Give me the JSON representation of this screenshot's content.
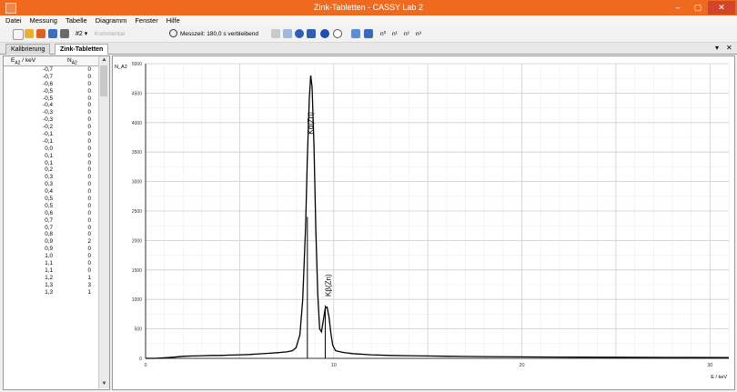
{
  "window": {
    "title": "Zink-Tabletten - CASSY Lab 2",
    "minimize": "–",
    "maximize": "▢",
    "close": "✕"
  },
  "menu": [
    "Datei",
    "Messung",
    "Tabelle",
    "Diagramm",
    "Fenster",
    "Hilfe"
  ],
  "toolbar": {
    "channel": "#2 ▾",
    "channel_hint": "Kommentar",
    "measure_time": "Messzeit: 180,0 s verbleibend",
    "exponents": [
      "n⁰",
      "n¹",
      "n²",
      "n³"
    ]
  },
  "tabs": {
    "calibration": "Kalibrierung",
    "active": "Zink-Tabletten",
    "pin": "▾",
    "close": "✕"
  },
  "table": {
    "headers": [
      "E<sub>A2</sub> / keV",
      "N<sub>A2</sub>"
    ],
    "rows": [
      [
        "-0,7",
        "0"
      ],
      [
        "-0,7",
        "0"
      ],
      [
        "-0,6",
        "0"
      ],
      [
        "-0,5",
        "0"
      ],
      [
        "-0,5",
        "0"
      ],
      [
        "-0,4",
        "0"
      ],
      [
        "-0,3",
        "0"
      ],
      [
        "-0,3",
        "0"
      ],
      [
        "-0,2",
        "0"
      ],
      [
        "-0,1",
        "0"
      ],
      [
        "-0,1",
        "0"
      ],
      [
        "0,0",
        "0"
      ],
      [
        "0,1",
        "0"
      ],
      [
        "0,1",
        "0"
      ],
      [
        "0,2",
        "0"
      ],
      [
        "0,3",
        "0"
      ],
      [
        "0,3",
        "0"
      ],
      [
        "0,4",
        "0"
      ],
      [
        "0,5",
        "0"
      ],
      [
        "0,5",
        "0"
      ],
      [
        "0,6",
        "0"
      ],
      [
        "0,7",
        "0"
      ],
      [
        "0,7",
        "0"
      ],
      [
        "0,8",
        "0"
      ],
      [
        "0,9",
        "2"
      ],
      [
        "0,9",
        "0"
      ],
      [
        "1,0",
        "0"
      ],
      [
        "1,1",
        "0"
      ],
      [
        "1,1",
        "0"
      ],
      [
        "1,2",
        "1"
      ],
      [
        "1,3",
        "3"
      ],
      [
        "1,3",
        "1"
      ]
    ]
  },
  "chart_data": {
    "type": "line",
    "ylabel": "N_A2",
    "xlabel": "E / keV",
    "xlim": [
      0,
      31
    ],
    "ylim": [
      0,
      5000
    ],
    "xticks": [
      0,
      10,
      20,
      30
    ],
    "yticks": [
      0,
      500,
      1000,
      1500,
      2000,
      2500,
      3000,
      3500,
      4000,
      4500,
      5000
    ],
    "grid": true,
    "annotations": [
      {
        "text": "Kα(Zn)",
        "x": 8.9,
        "y": 3800
      },
      {
        "text": "Kβ(Zn)",
        "x": 9.85,
        "y": 1050
      }
    ],
    "marker_lines": [
      {
        "x": 8.6,
        "y": 2400
      },
      {
        "x": 9.55,
        "y": 900
      }
    ],
    "series": [
      {
        "values": [
          [
            0,
            0
          ],
          [
            0.5,
            0
          ],
          [
            1,
            10
          ],
          [
            1.5,
            20
          ],
          [
            2,
            35
          ],
          [
            2.5,
            40
          ],
          [
            3,
            45
          ],
          [
            3.5,
            50
          ],
          [
            4,
            50
          ],
          [
            4.5,
            55
          ],
          [
            5,
            60
          ],
          [
            5.5,
            65
          ],
          [
            6,
            75
          ],
          [
            6.5,
            85
          ],
          [
            7,
            95
          ],
          [
            7.5,
            110
          ],
          [
            7.8,
            130
          ],
          [
            8.0,
            180
          ],
          [
            8.2,
            400
          ],
          [
            8.35,
            1000
          ],
          [
            8.5,
            2200
          ],
          [
            8.6,
            3400
          ],
          [
            8.7,
            4400
          ],
          [
            8.78,
            4800
          ],
          [
            8.85,
            4600
          ],
          [
            8.95,
            3600
          ],
          [
            9.05,
            2200
          ],
          [
            9.15,
            1100
          ],
          [
            9.25,
            500
          ],
          [
            9.35,
            450
          ],
          [
            9.45,
            650
          ],
          [
            9.55,
            850
          ],
          [
            9.65,
            870
          ],
          [
            9.75,
            700
          ],
          [
            9.85,
            420
          ],
          [
            9.95,
            220
          ],
          [
            10.1,
            130
          ],
          [
            10.5,
            100
          ],
          [
            11,
            80
          ],
          [
            12,
            60
          ],
          [
            13,
            50
          ],
          [
            14,
            45
          ],
          [
            15,
            40
          ],
          [
            16,
            35
          ],
          [
            18,
            30
          ],
          [
            20,
            25
          ],
          [
            22,
            22
          ],
          [
            25,
            18
          ],
          [
            28,
            15
          ],
          [
            31,
            12
          ]
        ]
      }
    ]
  }
}
